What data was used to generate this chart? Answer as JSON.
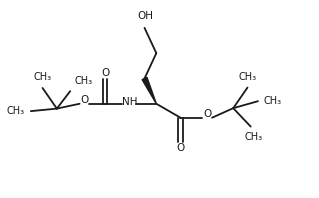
{
  "bg_color": "#ffffff",
  "line_color": "#1a1a1a",
  "lw": 1.3,
  "font_size": 7.5,
  "fig_w": 3.19,
  "fig_h": 1.98,
  "dpi": 100,
  "xlim": [
    0,
    10
  ],
  "ylim": [
    0,
    6.2
  ]
}
